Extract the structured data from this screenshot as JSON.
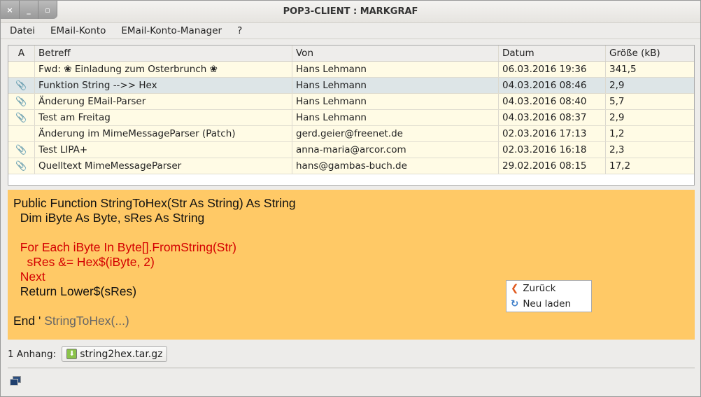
{
  "window": {
    "title": "POP3-CLIENT : MARKGRAF",
    "buttons": [
      "×",
      "_",
      "▫"
    ]
  },
  "menu": [
    "Datei",
    "EMail-Konto",
    "EMail-Konto-Manager",
    "?"
  ],
  "table": {
    "columns": [
      "A",
      "Betreff",
      "Von",
      "Datum",
      "Größe (kB)"
    ],
    "rows": [
      {
        "attach": false,
        "subject": "Fwd: ❀ Einladung zum Osterbrunch ❀",
        "from": "Hans Lehmann",
        "date": "06.03.2016 19:36",
        "size": "341,5"
      },
      {
        "attach": true,
        "subject": "Funktion String -->> Hex",
        "from": "Hans Lehmann",
        "date": "04.03.2016 08:46",
        "size": "2,9",
        "selected": true
      },
      {
        "attach": true,
        "subject": "Änderung EMail-Parser",
        "from": "Hans Lehmann",
        "date": "04.03.2016 08:40",
        "size": "5,7"
      },
      {
        "attach": true,
        "subject": "Test am Freitag",
        "from": "Hans Lehmann",
        "date": "04.03.2016 08:37",
        "size": "2,9"
      },
      {
        "attach": false,
        "subject": "Änderung im MimeMessageParser (Patch)",
        "from": "gerd.geier@freenet.de",
        "date": "02.03.2016 17:13",
        "size": "1,2"
      },
      {
        "attach": true,
        "subject": "Test LIPA+",
        "from": "anna-maria@arcor.com",
        "date": "02.03.2016 16:18",
        "size": "2,3"
      },
      {
        "attach": true,
        "subject": "Quelltext MimeMessageParser",
        "from": "hans@gambas-buch.de",
        "date": "29.02.2016 08:15",
        "size": "17,2"
      }
    ]
  },
  "message": {
    "background": "#ffc966",
    "lines": [
      {
        "text": "Public Function StringToHex(Str As String) As String",
        "color": "black"
      },
      {
        "text": "  Dim iByte As Byte, sRes As String",
        "color": "black"
      },
      {
        "text": "",
        "color": "black"
      },
      {
        "text": "  For Each iByte In Byte[].FromString(Str)",
        "color": "red"
      },
      {
        "text": "    sRes &= Hex$(iByte, 2)",
        "color": "red"
      },
      {
        "text": "  Next",
        "color": "red"
      },
      {
        "text": "  Return Lower$(sRes)",
        "color": "black"
      },
      {
        "text": "",
        "color": "black"
      }
    ],
    "last_line": {
      "prefix": "End ' ",
      "comment": "StringToHex(...)"
    }
  },
  "context_menu": {
    "items": [
      {
        "label": "Zurück",
        "icon": "back-arrow-icon"
      },
      {
        "label": "Neu laden",
        "icon": "reload-icon"
      }
    ]
  },
  "attachments": {
    "label": "1 Anhang:",
    "file": "string2hex.tar.gz"
  }
}
